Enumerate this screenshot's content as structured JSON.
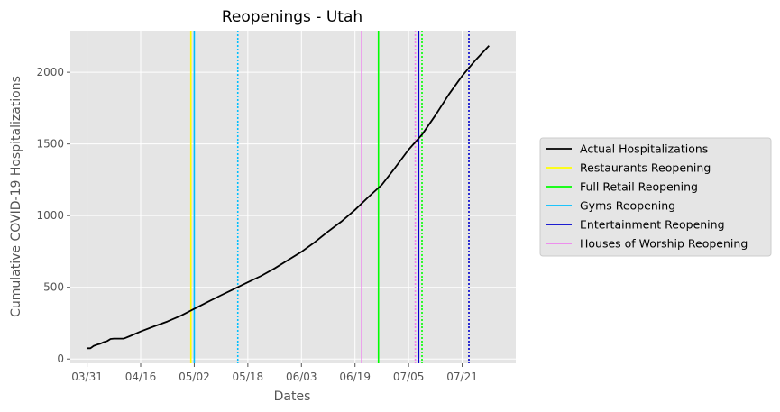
{
  "chart_data": {
    "type": "line",
    "title": "Reopenings - Utah",
    "xlabel": "Dates",
    "ylabel": "Cumulative COVID-19 Hospitalizations",
    "x_tick_labels": [
      "03/31",
      "04/16",
      "05/02",
      "05/18",
      "06/03",
      "06/19",
      "07/05",
      "07/21"
    ],
    "y_ticks": [
      0,
      500,
      1000,
      1500,
      2000
    ],
    "xlim": [
      "2020-03-26",
      "2020-08-06"
    ],
    "ylim": [
      -30,
      2290
    ],
    "grid": true,
    "legend_position": "outside-right",
    "series": [
      {
        "name": "Actual Hospitalizations",
        "color": "#000000",
        "points": [
          {
            "x": "2020-03-31",
            "y": 75
          },
          {
            "x": "2020-04-01",
            "y": 75
          },
          {
            "x": "2020-04-02",
            "y": 92
          },
          {
            "x": "2020-04-03",
            "y": 100
          },
          {
            "x": "2020-04-04",
            "y": 107
          },
          {
            "x": "2020-04-05",
            "y": 118
          },
          {
            "x": "2020-04-06",
            "y": 125
          },
          {
            "x": "2020-04-07",
            "y": 140
          },
          {
            "x": "2020-04-08",
            "y": 142
          },
          {
            "x": "2020-04-09",
            "y": 142
          },
          {
            "x": "2020-04-10",
            "y": 142
          },
          {
            "x": "2020-04-11",
            "y": 142
          },
          {
            "x": "2020-04-13",
            "y": 162
          },
          {
            "x": "2020-04-16",
            "y": 192
          },
          {
            "x": "2020-04-20",
            "y": 228
          },
          {
            "x": "2020-04-24",
            "y": 262
          },
          {
            "x": "2020-04-28",
            "y": 302
          },
          {
            "x": "2020-05-02",
            "y": 350
          },
          {
            "x": "2020-05-06",
            "y": 398
          },
          {
            "x": "2020-05-10",
            "y": 445
          },
          {
            "x": "2020-05-14",
            "y": 490
          },
          {
            "x": "2020-05-18",
            "y": 535
          },
          {
            "x": "2020-05-22",
            "y": 580
          },
          {
            "x": "2020-05-26",
            "y": 632
          },
          {
            "x": "2020-05-30",
            "y": 690
          },
          {
            "x": "2020-06-03",
            "y": 748
          },
          {
            "x": "2020-06-07",
            "y": 815
          },
          {
            "x": "2020-06-11",
            "y": 890
          },
          {
            "x": "2020-06-15",
            "y": 960
          },
          {
            "x": "2020-06-19",
            "y": 1040
          },
          {
            "x": "2020-06-23",
            "y": 1130
          },
          {
            "x": "2020-06-27",
            "y": 1215
          },
          {
            "x": "2020-07-01",
            "y": 1335
          },
          {
            "x": "2020-07-05",
            "y": 1460
          },
          {
            "x": "2020-07-09",
            "y": 1565
          },
          {
            "x": "2020-07-13",
            "y": 1700
          },
          {
            "x": "2020-07-17",
            "y": 1845
          },
          {
            "x": "2020-07-21",
            "y": 1975
          },
          {
            "x": "2020-07-25",
            "y": 2085
          },
          {
            "x": "2020-07-29",
            "y": 2185
          }
        ]
      }
    ],
    "vertical_lines": [
      {
        "name": "Restaurants Reopening",
        "color": "#ffff00",
        "x": "2020-05-01",
        "style": "solid",
        "in_legend": true
      },
      {
        "name": "Gyms Reopening",
        "color": "#00bfff",
        "x": "2020-05-02",
        "style": "solid",
        "in_legend": true
      },
      {
        "name": "Gyms Reopening",
        "color": "#00bfff",
        "x": "2020-05-15",
        "style": "dotted",
        "in_legend": false
      },
      {
        "name": "Houses of Worship Reopening",
        "color": "#ee82ee",
        "x": "2020-06-21",
        "style": "solid",
        "in_legend": true
      },
      {
        "name": "Full Retail Reopening",
        "color": "#00ff00",
        "x": "2020-06-26",
        "style": "solid",
        "in_legend": true
      },
      {
        "name": "Houses of Worship Reopening",
        "color": "#ee82ee",
        "x": "2020-07-07",
        "style": "dotted",
        "in_legend": false
      },
      {
        "name": "Entertainment Reopening",
        "color": "#0000cd",
        "x": "2020-07-08",
        "style": "solid",
        "in_legend": true
      },
      {
        "name": "Full Retail Reopening",
        "color": "#00ff00",
        "x": "2020-07-09",
        "style": "dotted",
        "in_legend": false
      },
      {
        "name": "Entertainment Reopening",
        "color": "#0000cd",
        "x": "2020-07-23",
        "style": "dotted",
        "in_legend": false
      }
    ],
    "legend": [
      {
        "label": "Actual Hospitalizations",
        "color": "#000000"
      },
      {
        "label": "Restaurants Reopening",
        "color": "#ffff00"
      },
      {
        "label": "Full Retail Reopening",
        "color": "#00ff00"
      },
      {
        "label": "Gyms Reopening",
        "color": "#00bfff"
      },
      {
        "label": "Entertainment Reopening",
        "color": "#0000cd"
      },
      {
        "label": "Houses of Worship Reopening",
        "color": "#ee82ee"
      }
    ]
  }
}
